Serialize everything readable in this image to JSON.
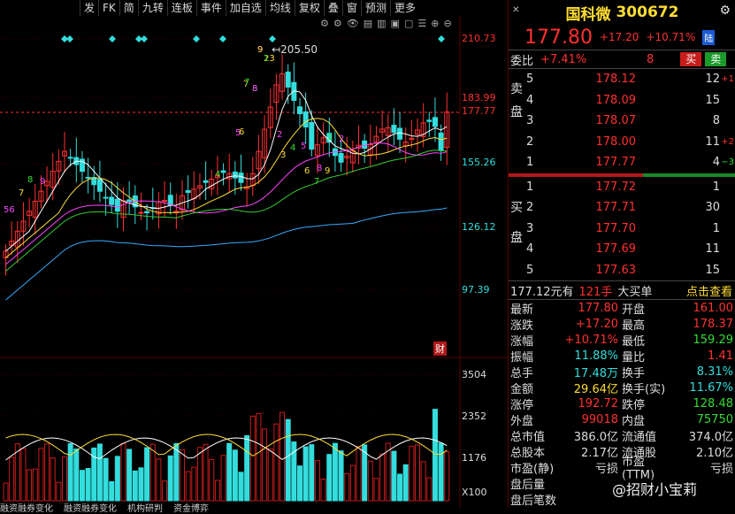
{
  "toolbar": {
    "items": [
      "发",
      "FK",
      "简",
      "九转",
      "连板",
      "事件",
      "加自选",
      "均线",
      "复权",
      "叠",
      "窗",
      "预测",
      "更多"
    ]
  },
  "chart": {
    "high_label": "205.50",
    "price_axis": [
      "210.73",
      "183.99",
      "177.77",
      "155.26",
      "126.12",
      "97.39"
    ],
    "vol_axis": [
      "3504",
      "2352",
      "1176",
      "X100"
    ],
    "fin_badge": "财",
    "seq_labels": [
      "56",
      "7",
      "8",
      "9",
      "7",
      "8",
      "9",
      "23",
      "4",
      "5",
      "6",
      "7",
      "8",
      "9",
      "1",
      "2",
      "3",
      "4",
      "5",
      "6",
      "7",
      "8",
      "9",
      "1",
      "2"
    ],
    "bottom_tabs": [
      "融资融券变化",
      "融资融券变化",
      "机构研判",
      "资金博弈"
    ]
  },
  "chart_data": {
    "type": "candlestick",
    "price_range": [
      97.39,
      210.73
    ],
    "max_high": 205.5,
    "last_close": 177.8,
    "prev_close": 160.6
  },
  "panel": {
    "name": "国科微",
    "code": "300672",
    "price": "177.80",
    "change": "+17.20",
    "change_pct": "+10.71%",
    "board_badge": "陆",
    "weibi_label": "委比",
    "weibi_value": "+7.41%",
    "weibi_n": "8",
    "buy_btn": "买",
    "sell_btn": "卖",
    "sell_word": [
      "卖",
      "盘"
    ],
    "buy_word": [
      "买",
      "盘"
    ],
    "asks": [
      {
        "i": "5",
        "p": "178.12",
        "q": "12",
        "c": "+1"
      },
      {
        "i": "4",
        "p": "178.09",
        "q": "15",
        "c": ""
      },
      {
        "i": "3",
        "p": "178.07",
        "q": "8",
        "c": ""
      },
      {
        "i": "2",
        "p": "178.00",
        "q": "11",
        "c": "+2"
      },
      {
        "i": "1",
        "p": "177.77",
        "q": "4",
        "c": "−3"
      }
    ],
    "bids": [
      {
        "i": "1",
        "p": "177.72",
        "q": "1"
      },
      {
        "i": "2",
        "p": "177.71",
        "q": "30"
      },
      {
        "i": "3",
        "p": "177.70",
        "q": "1"
      },
      {
        "i": "4",
        "p": "177.69",
        "q": "11"
      },
      {
        "i": "5",
        "p": "177.63",
        "q": "15"
      }
    ],
    "summary": {
      "avg": "177.12元有",
      "hands": "121手",
      "type": "大买单",
      "link": "点击查看"
    },
    "stats": [
      [
        "最新",
        "177.80",
        "red",
        "开盘",
        "161.00",
        "red"
      ],
      [
        "涨跌",
        "+17.20",
        "red",
        "最高",
        "178.37",
        "red"
      ],
      [
        "涨幅",
        "+10.71%",
        "red",
        "最低",
        "159.29",
        "green"
      ],
      [
        "振幅",
        "11.88%",
        "cyan",
        "量比",
        "1.41",
        "red"
      ],
      [
        "总手",
        "17.48万",
        "cyan",
        "换手",
        "8.31%",
        "cyan"
      ],
      [
        "金额",
        "29.64亿",
        "yellow",
        "换手(实)",
        "11.67%",
        "cyan"
      ],
      [
        "涨停",
        "192.72",
        "red",
        "跌停",
        "128.48",
        "green"
      ],
      [
        "外盘",
        "99018",
        "red",
        "内盘",
        "75750",
        "green"
      ],
      [
        "总市值",
        "386.0亿",
        "white",
        "流通值",
        "374.0亿",
        "white"
      ],
      [
        "总股本",
        "2.17亿",
        "white",
        "流通股",
        "2.10亿",
        "white"
      ],
      [
        "市盈(静)",
        "亏损",
        "white",
        "市盈(TTM)",
        "亏损",
        "white"
      ],
      [
        "盘后量",
        "",
        "white",
        "",
        "",
        "white"
      ],
      [
        "盘后笔数",
        "",
        "white",
        "",
        "",
        "white"
      ]
    ],
    "watermark": "@招财小宝莉"
  },
  "colors": {
    "up": "#ff3030",
    "down": "#33dddd",
    "bg": "#000000",
    "accent": "#ffdd33"
  }
}
